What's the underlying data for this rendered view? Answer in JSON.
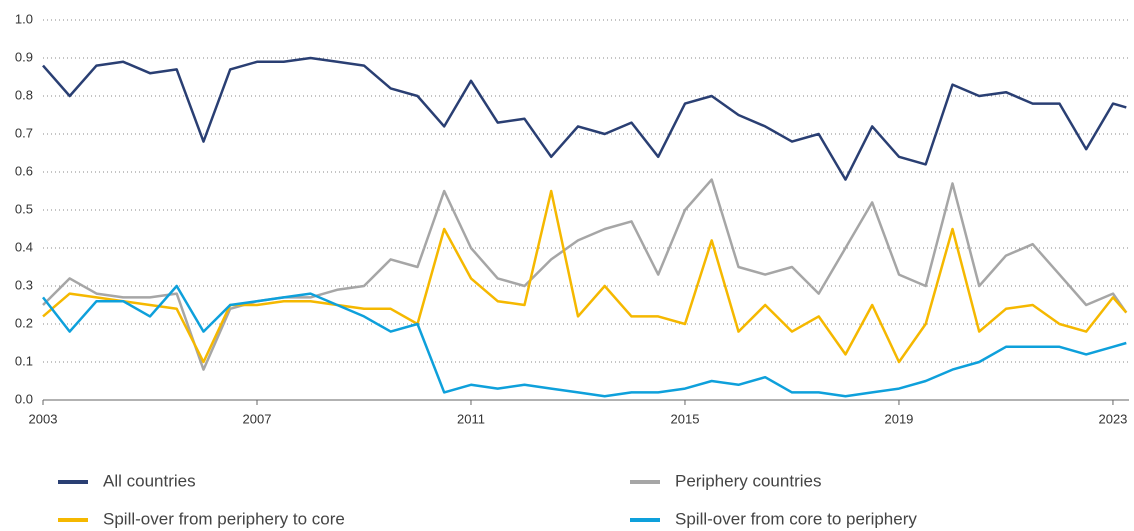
{
  "chart_data": {
    "type": "line",
    "x": [
      2003,
      2003.5,
      2004,
      2004.5,
      2005,
      2005.5,
      2006,
      2006.5,
      2007,
      2007.5,
      2008,
      2008.5,
      2009,
      2009.5,
      2010,
      2010.5,
      2011,
      2011.5,
      2012,
      2012.5,
      2013,
      2013.5,
      2014,
      2014.5,
      2015,
      2015.5,
      2016,
      2016.5,
      2017,
      2017.5,
      2018,
      2018.5,
      2019,
      2019.5,
      2020,
      2020.5,
      2021,
      2021.5,
      2022,
      2022.5,
      2023,
      2023.25
    ],
    "series": [
      {
        "name": "All countries",
        "color": "#2a3f73",
        "values": [
          0.88,
          0.8,
          0.88,
          0.89,
          0.86,
          0.87,
          0.68,
          0.87,
          0.89,
          0.89,
          0.9,
          0.89,
          0.88,
          0.82,
          0.8,
          0.72,
          0.84,
          0.73,
          0.74,
          0.64,
          0.72,
          0.7,
          0.73,
          0.64,
          0.78,
          0.8,
          0.75,
          0.72,
          0.68,
          0.7,
          0.58,
          0.72,
          0.64,
          0.62,
          0.83,
          0.8,
          0.81,
          0.78,
          0.78,
          0.66,
          0.78,
          0.77
        ]
      },
      {
        "name": "Periphery countries",
        "color": "#a6a6a6",
        "values": [
          0.25,
          0.32,
          0.28,
          0.27,
          0.27,
          0.28,
          0.08,
          0.24,
          0.26,
          0.27,
          0.27,
          0.29,
          0.3,
          0.37,
          0.35,
          0.55,
          0.4,
          0.32,
          0.3,
          0.37,
          0.42,
          0.45,
          0.47,
          0.33,
          0.5,
          0.58,
          0.35,
          0.33,
          0.35,
          0.28,
          0.4,
          0.52,
          0.33,
          0.3,
          0.57,
          0.3,
          0.38,
          0.41,
          0.33,
          0.25,
          0.28,
          0.23
        ]
      },
      {
        "name": "Spill-over from periphery  to core",
        "color": "#f5b800",
        "values": [
          0.22,
          0.28,
          0.27,
          0.26,
          0.25,
          0.24,
          0.1,
          0.25,
          0.25,
          0.26,
          0.26,
          0.25,
          0.24,
          0.24,
          0.2,
          0.45,
          0.32,
          0.26,
          0.25,
          0.55,
          0.22,
          0.3,
          0.22,
          0.22,
          0.2,
          0.42,
          0.18,
          0.25,
          0.18,
          0.22,
          0.12,
          0.25,
          0.1,
          0.2,
          0.45,
          0.18,
          0.24,
          0.25,
          0.2,
          0.18,
          0.27,
          0.23
        ]
      },
      {
        "name": "Spill-over from core to periphery",
        "color": "#0ea0db",
        "values": [
          0.27,
          0.18,
          0.26,
          0.26,
          0.22,
          0.3,
          0.18,
          0.25,
          0.26,
          0.27,
          0.28,
          0.25,
          0.22,
          0.18,
          0.2,
          0.02,
          0.04,
          0.03,
          0.04,
          0.03,
          0.02,
          0.01,
          0.02,
          0.02,
          0.03,
          0.05,
          0.04,
          0.06,
          0.02,
          0.02,
          0.01,
          0.02,
          0.03,
          0.05,
          0.08,
          0.1,
          0.14,
          0.14,
          0.14,
          0.12,
          0.14,
          0.15
        ]
      }
    ],
    "xlim": [
      2003,
      2023.3
    ],
    "xticks": [
      2003,
      2007,
      2011,
      2015,
      2019,
      2023
    ],
    "ylim": [
      0,
      1
    ],
    "yticks": [
      {
        "value": 0,
        "label": "0.0"
      },
      0.1,
      0.2,
      0.3,
      0.4,
      0.5,
      0.6,
      0.7,
      0.8,
      0.9,
      {
        "value": 1,
        "label": "1.0"
      }
    ],
    "grid": true,
    "legend": "bottom"
  }
}
